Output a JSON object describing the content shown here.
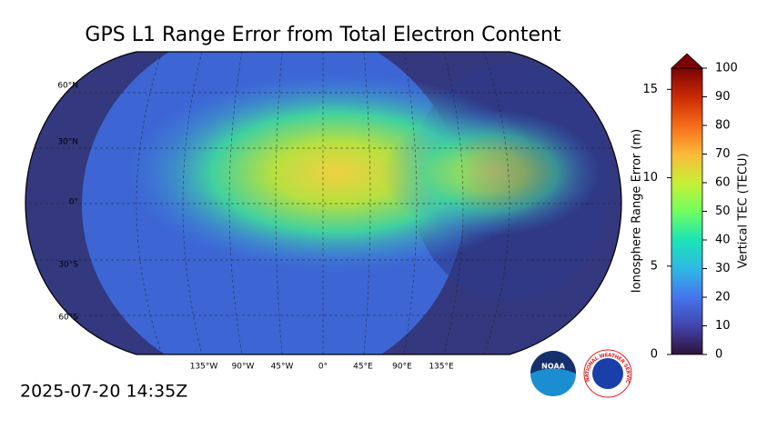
{
  "title": "GPS L1 Range Error from Total Electron Content",
  "timestamp": "2025-07-20 14:35Z",
  "map": {
    "lat_labels": [
      "60°N",
      "30°N",
      "0°",
      "30°S",
      "60°S"
    ],
    "lon_labels": [
      "135°W",
      "90°W",
      "45°W",
      "0°",
      "45°E",
      "90°E",
      "135°E"
    ]
  },
  "colorbar": {
    "left_label": "Ionosphere Range Error (m)",
    "left_lim": [
      0,
      16.2
    ],
    "left_ticks": [
      0,
      5,
      10,
      15
    ],
    "right_label": "Vertical TEC (TECU)",
    "right_lim": [
      0,
      100
    ],
    "right_ticks": [
      0,
      10,
      20,
      30,
      40,
      50,
      60,
      70,
      80,
      90,
      100
    ]
  },
  "logos": {
    "noaa": "NOAA",
    "nws": "NATIONAL WEATHER SERVICE"
  }
}
